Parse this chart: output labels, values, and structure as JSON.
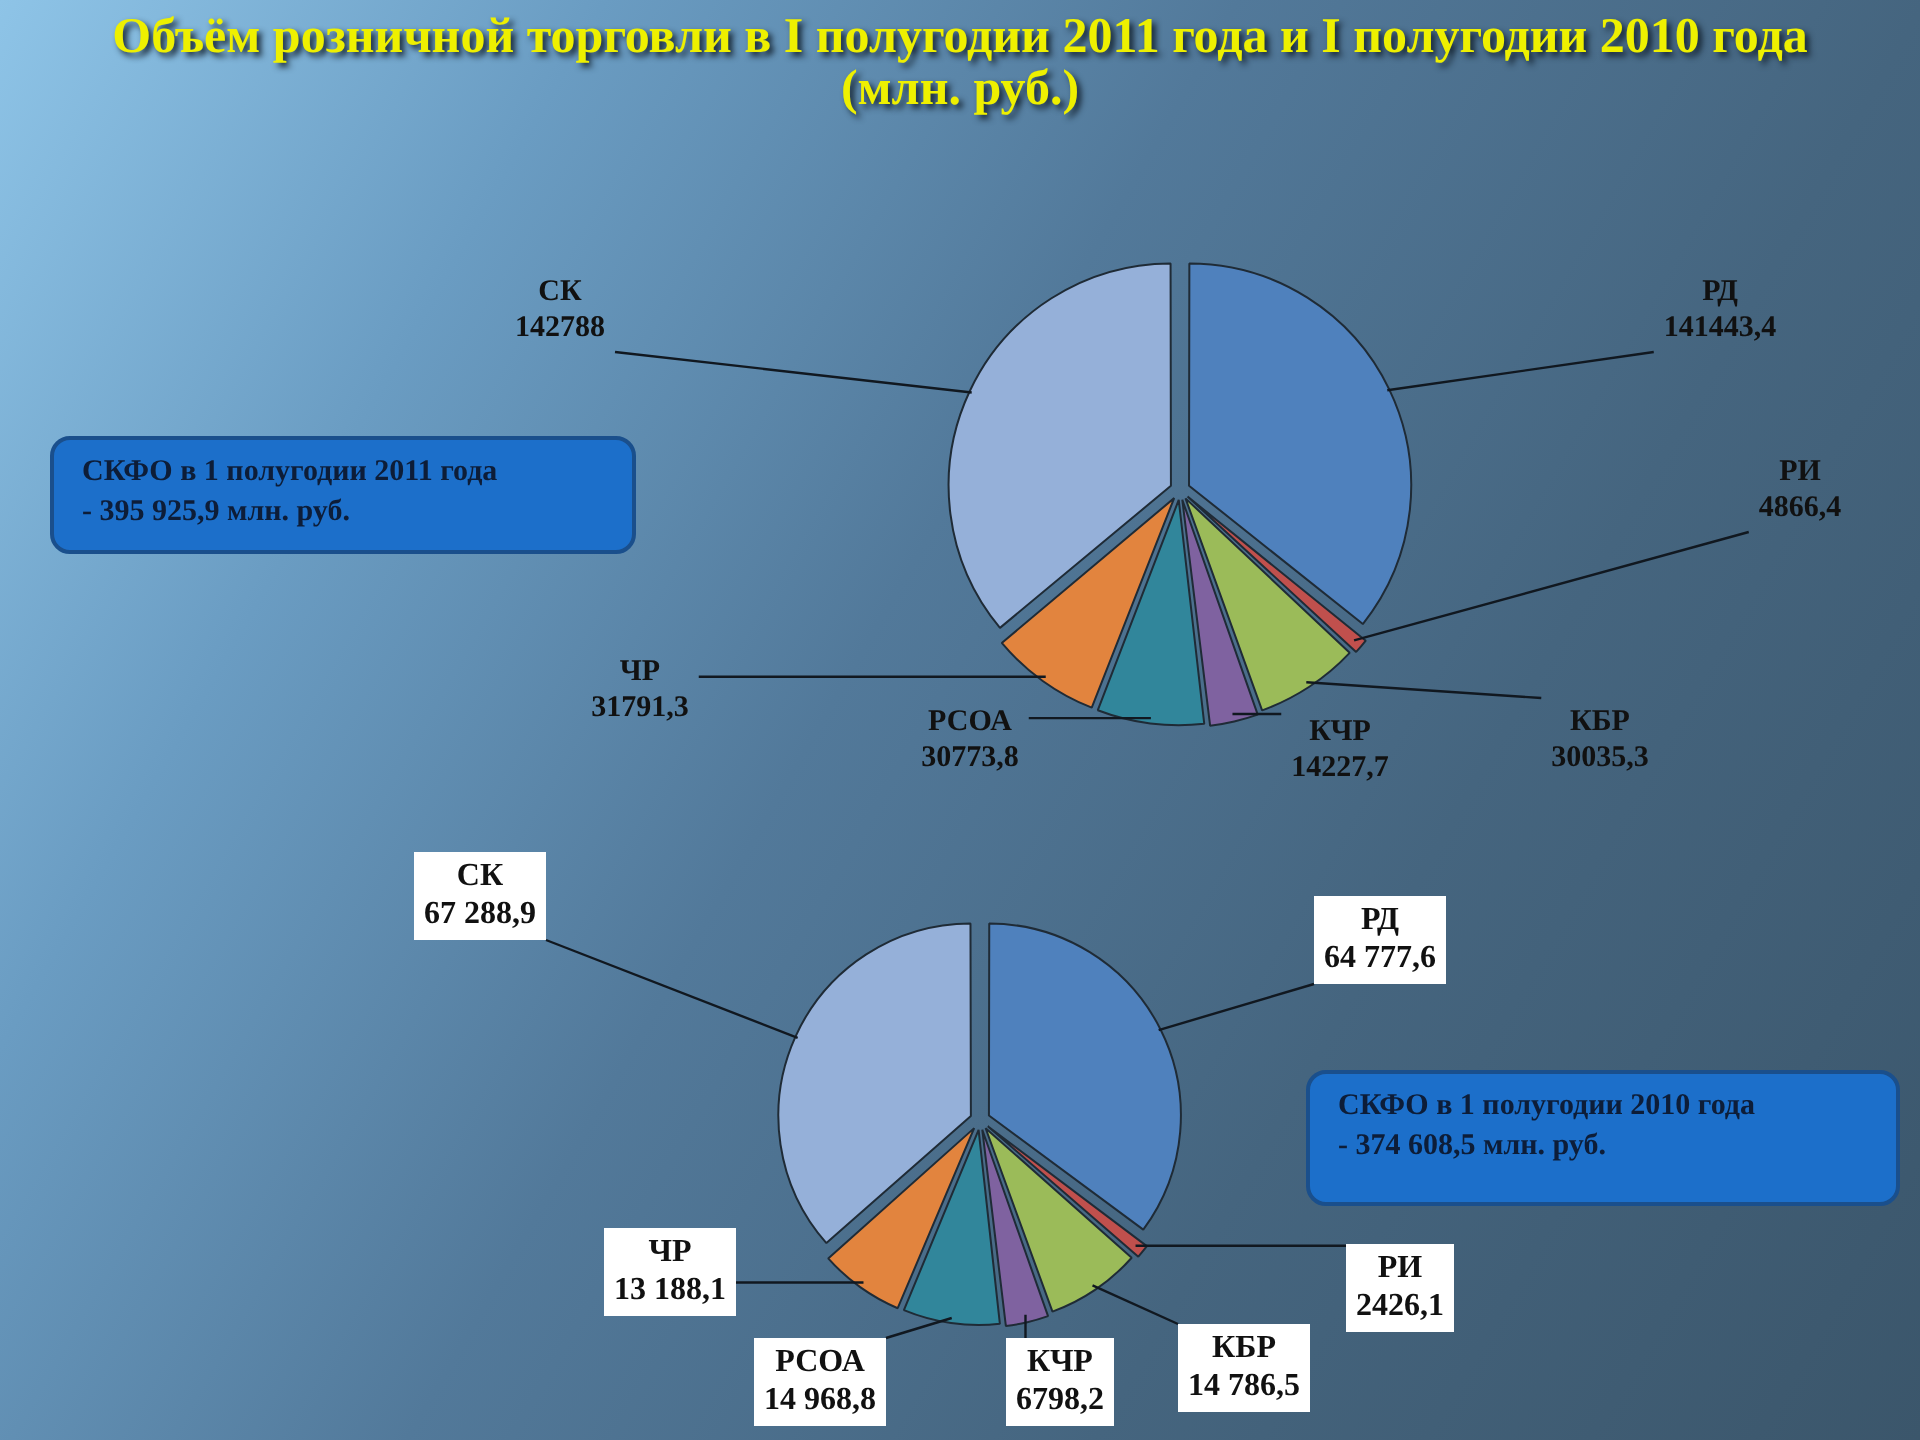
{
  "chart_data": [
    {
      "type": "pie",
      "title": "Объём розничной торговли в I полугодии 2011 года и I полугодии 2010 года\n(млн. руб.)",
      "categories": [
        "РД",
        "РИ",
        "КБР",
        "КЧР",
        "РСОА",
        "ЧР",
        "СК"
      ],
      "values": [
        141443.4,
        4866.4,
        30035.3,
        14227.7,
        30773.8,
        31791.3,
        142788
      ],
      "value_labels": [
        "141443,4",
        "4866,4",
        "30035,3",
        "14227,7",
        "30773,8",
        "31791,3",
        "142788"
      ],
      "colors": [
        "#4f81bd",
        "#c0504d",
        "#9bbb59",
        "#7f62a0",
        "#31869b",
        "#e2843e",
        "#95b0d9"
      ],
      "annotations": [
        "СКФО в 1 полугодии 2011 года\n - 395 925,9  млн. руб."
      ]
    },
    {
      "type": "pie",
      "categories": [
        "РД",
        "РИ",
        "КБР",
        "КЧР",
        "РСОА",
        "ЧР",
        "СК"
      ],
      "values": [
        64777.6,
        2426.1,
        14786.5,
        6798.2,
        14968.8,
        13188.1,
        67288.9
      ],
      "value_labels": [
        "64 777,6",
        "2426,1",
        "14 786,5",
        "6798,2",
        "14 968,8",
        "13 188,1",
        "67 288,9"
      ],
      "colors": [
        "#4f81bd",
        "#c0504d",
        "#9bbb59",
        "#7f62a0",
        "#31869b",
        "#e2843e",
        "#95b0d9"
      ],
      "annotations": [
        "СКФО в 1 полугодии 2010 года\n- 374 608,5 млн. руб."
      ]
    }
  ]
}
